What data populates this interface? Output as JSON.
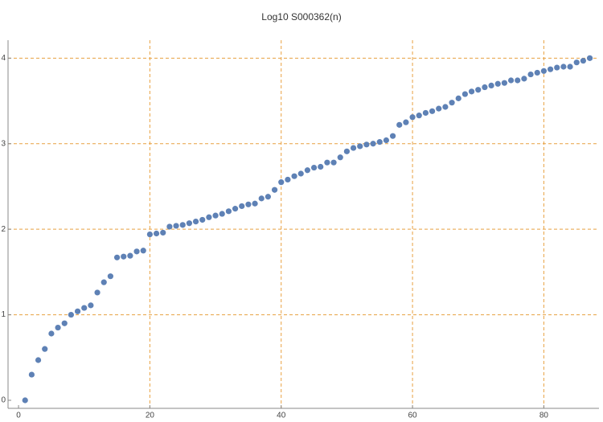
{
  "chart_data": {
    "type": "scatter",
    "title": "Log10 S000362(n)",
    "x": [
      1,
      2,
      3,
      4,
      5,
      6,
      7,
      8,
      9,
      10,
      11,
      12,
      13,
      14,
      15,
      16,
      17,
      18,
      19,
      20,
      21,
      22,
      23,
      24,
      25,
      26,
      27,
      28,
      29,
      30,
      31,
      32,
      33,
      34,
      35,
      36,
      37,
      38,
      39,
      40,
      41,
      42,
      43,
      44,
      45,
      46,
      47,
      48,
      49,
      50,
      51,
      52,
      53,
      54,
      55,
      56,
      57,
      58,
      59,
      60,
      61,
      62,
      63,
      64,
      65,
      66,
      67,
      68,
      69,
      70,
      71,
      72,
      73,
      74,
      75,
      76,
      77,
      78,
      79,
      80,
      81,
      82,
      83,
      84,
      85,
      86,
      87
    ],
    "series": [
      {
        "color": "#5e81b5",
        "values": [
          0,
          0.3,
          0.47,
          0.6,
          0.78,
          0.85,
          0.9,
          1.0,
          1.04,
          1.08,
          1.11,
          1.26,
          1.38,
          1.45,
          1.67,
          1.68,
          1.69,
          1.74,
          1.75,
          1.94,
          1.95,
          1.96,
          2.03,
          2.04,
          2.05,
          2.07,
          2.09,
          2.11,
          2.14,
          2.16,
          2.18,
          2.21,
          2.24,
          2.27,
          2.29,
          2.3,
          2.36,
          2.38,
          2.46,
          2.55,
          2.58,
          2.62,
          2.65,
          2.69,
          2.72,
          2.73,
          2.78,
          2.78,
          2.84,
          2.91,
          2.95,
          2.97,
          2.99,
          3.0,
          3.02,
          3.04,
          3.09,
          3.22,
          3.25,
          3.31,
          3.33,
          3.36,
          3.38,
          3.41,
          3.43,
          3.48,
          3.53,
          3.58,
          3.61,
          3.63,
          3.66,
          3.68,
          3.7,
          3.71,
          3.74,
          3.74,
          3.76,
          3.81,
          3.83,
          3.85,
          3.87,
          3.89,
          3.9,
          3.9,
          3.95,
          3.97,
          4.0
        ]
      }
    ],
    "xlim": [
      -1.6,
      88.4
    ],
    "ylim": [
      -0.094,
      4.21
    ],
    "xticks": [
      0,
      20,
      40,
      60,
      80
    ],
    "yticks": [
      0,
      1,
      2,
      3,
      4
    ],
    "grid": true,
    "grid_color": "#e8a040"
  }
}
